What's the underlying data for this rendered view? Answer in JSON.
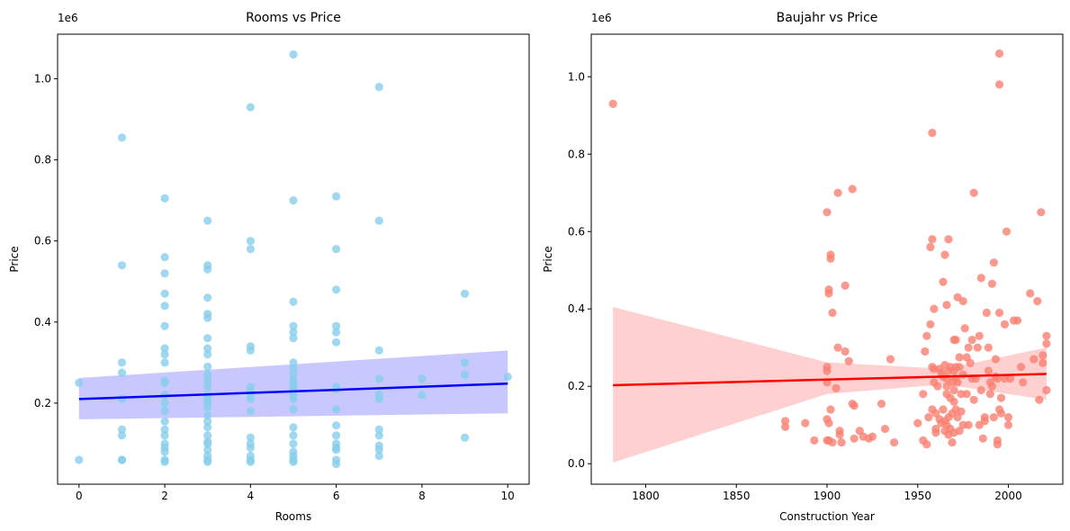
{
  "chart_data": [
    {
      "type": "scatter",
      "title": "Rooms vs Price",
      "xlabel": "Rooms",
      "ylabel": "Price",
      "y_offset_label": "1e6",
      "xlim": [
        -0.5,
        10.5
      ],
      "ylim": [
        0.0,
        1.11
      ],
      "xticks": [
        0,
        2,
        4,
        6,
        8,
        10
      ],
      "xtick_labels": [
        "0",
        "2",
        "4",
        "6",
        "8",
        "10"
      ],
      "yticks": [
        0.2,
        0.4,
        0.6,
        0.8,
        1.0
      ],
      "ytick_labels": [
        "0.2",
        "0.4",
        "0.6",
        "0.8",
        "1.0"
      ],
      "point_color": "#87CEEB",
      "line_color": "#0000FF",
      "band_color": "#C8C8FF",
      "points": [
        [
          0,
          0.25
        ],
        [
          0,
          0.06
        ],
        [
          1,
          0.855
        ],
        [
          1,
          0.54
        ],
        [
          1,
          0.3
        ],
        [
          1,
          0.275
        ],
        [
          1,
          0.21
        ],
        [
          1,
          0.135
        ],
        [
          1,
          0.12
        ],
        [
          1,
          0.06
        ],
        [
          1,
          0.06
        ],
        [
          2,
          0.705
        ],
        [
          2,
          0.56
        ],
        [
          2,
          0.52
        ],
        [
          2,
          0.47
        ],
        [
          2,
          0.44
        ],
        [
          2,
          0.39
        ],
        [
          2,
          0.335
        ],
        [
          2,
          0.32
        ],
        [
          2,
          0.3
        ],
        [
          2,
          0.255
        ],
        [
          2,
          0.25
        ],
        [
          2,
          0.22
        ],
        [
          2,
          0.2
        ],
        [
          2,
          0.18
        ],
        [
          2,
          0.155
        ],
        [
          2,
          0.135
        ],
        [
          2,
          0.12
        ],
        [
          2,
          0.1
        ],
        [
          2,
          0.09
        ],
        [
          2,
          0.08
        ],
        [
          2,
          0.06
        ],
        [
          2,
          0.055
        ],
        [
          3,
          0.65
        ],
        [
          3,
          0.54
        ],
        [
          3,
          0.53
        ],
        [
          3,
          0.46
        ],
        [
          3,
          0.42
        ],
        [
          3,
          0.41
        ],
        [
          3,
          0.36
        ],
        [
          3,
          0.335
        ],
        [
          3,
          0.32
        ],
        [
          3,
          0.29
        ],
        [
          3,
          0.27
        ],
        [
          3,
          0.255
        ],
        [
          3,
          0.24
        ],
        [
          3,
          0.22
        ],
        [
          3,
          0.21
        ],
        [
          3,
          0.2
        ],
        [
          3,
          0.19
        ],
        [
          3,
          0.17
        ],
        [
          3,
          0.155
        ],
        [
          3,
          0.14
        ],
        [
          3,
          0.12
        ],
        [
          3,
          0.105
        ],
        [
          3,
          0.1
        ],
        [
          3,
          0.085
        ],
        [
          3,
          0.07
        ],
        [
          3,
          0.06
        ],
        [
          3,
          0.055
        ],
        [
          4,
          0.93
        ],
        [
          4,
          0.6
        ],
        [
          4,
          0.58
        ],
        [
          4,
          0.34
        ],
        [
          4,
          0.33
        ],
        [
          4,
          0.24
        ],
        [
          4,
          0.23
        ],
        [
          4,
          0.22
        ],
        [
          4,
          0.21
        ],
        [
          4,
          0.18
        ],
        [
          4,
          0.115
        ],
        [
          4,
          0.1
        ],
        [
          4,
          0.09
        ],
        [
          4,
          0.07
        ],
        [
          4,
          0.06
        ],
        [
          4,
          0.055
        ],
        [
          5,
          1.06
        ],
        [
          5,
          0.7
        ],
        [
          5,
          0.45
        ],
        [
          5,
          0.39
        ],
        [
          5,
          0.375
        ],
        [
          5,
          0.36
        ],
        [
          5,
          0.3
        ],
        [
          5,
          0.285
        ],
        [
          5,
          0.27
        ],
        [
          5,
          0.255
        ],
        [
          5,
          0.25
        ],
        [
          5,
          0.24
        ],
        [
          5,
          0.23
        ],
        [
          5,
          0.22
        ],
        [
          5,
          0.21
        ],
        [
          5,
          0.185
        ],
        [
          5,
          0.14
        ],
        [
          5,
          0.12
        ],
        [
          5,
          0.1
        ],
        [
          5,
          0.08
        ],
        [
          5,
          0.07
        ],
        [
          5,
          0.06
        ],
        [
          5,
          0.055
        ],
        [
          6,
          0.71
        ],
        [
          6,
          0.58
        ],
        [
          6,
          0.48
        ],
        [
          6,
          0.39
        ],
        [
          6,
          0.375
        ],
        [
          6,
          0.35
        ],
        [
          6,
          0.24
        ],
        [
          6,
          0.235
        ],
        [
          6,
          0.185
        ],
        [
          6,
          0.145
        ],
        [
          6,
          0.12
        ],
        [
          6,
          0.1
        ],
        [
          6,
          0.09
        ],
        [
          6,
          0.085
        ],
        [
          6,
          0.06
        ],
        [
          6,
          0.05
        ],
        [
          7,
          0.98
        ],
        [
          7,
          0.65
        ],
        [
          7,
          0.33
        ],
        [
          7,
          0.26
        ],
        [
          7,
          0.22
        ],
        [
          7,
          0.21
        ],
        [
          7,
          0.135
        ],
        [
          7,
          0.12
        ],
        [
          7,
          0.095
        ],
        [
          7,
          0.085
        ],
        [
          7,
          0.07
        ],
        [
          8,
          0.26
        ],
        [
          8,
          0.22
        ],
        [
          9,
          0.47
        ],
        [
          9,
          0.3
        ],
        [
          9,
          0.27
        ],
        [
          9,
          0.115
        ],
        [
          10,
          0.265
        ]
      ],
      "regression": {
        "x": [
          0,
          10
        ],
        "y": [
          0.21,
          0.248
        ]
      },
      "band": {
        "x": [
          0,
          10
        ],
        "upper": [
          0.262,
          0.33
        ],
        "lower": [
          0.16,
          0.175
        ]
      }
    },
    {
      "type": "scatter",
      "title": "Baujahr vs Price",
      "xlabel": "Construction Year",
      "ylabel": "Price",
      "y_offset_label": "1e6",
      "xlim": [
        1770,
        2030
      ],
      "ylim": [
        -0.053,
        1.11
      ],
      "xticks": [
        1800,
        1850,
        1900,
        1950,
        2000
      ],
      "xtick_labels": [
        "1800",
        "1850",
        "1900",
        "1950",
        "2000"
      ],
      "yticks": [
        0.0,
        0.2,
        0.4,
        0.6,
        0.8,
        1.0
      ],
      "ytick_labels": [
        "0.0",
        "0.2",
        "0.4",
        "0.6",
        "0.8",
        "1.0"
      ],
      "point_color": "#FA8072",
      "line_color": "#FF0000",
      "band_color": "#FFD0D0",
      "points": [
        [
          1782,
          0.93
        ],
        [
          1877,
          0.11
        ],
        [
          1877,
          0.095
        ],
        [
          1888,
          0.105
        ],
        [
          1893,
          0.06
        ],
        [
          1900,
          0.65
        ],
        [
          1900,
          0.25
        ],
        [
          1900,
          0.24
        ],
        [
          1900,
          0.21
        ],
        [
          1900,
          0.115
        ],
        [
          1900,
          0.06
        ],
        [
          1901,
          0.44
        ],
        [
          1901,
          0.45
        ],
        [
          1901,
          0.105
        ],
        [
          1901,
          0.06
        ],
        [
          1902,
          0.53
        ],
        [
          1902,
          0.54
        ],
        [
          1902,
          0.14
        ],
        [
          1903,
          0.39
        ],
        [
          1903,
          0.055
        ],
        [
          1905,
          0.195
        ],
        [
          1906,
          0.7
        ],
        [
          1906,
          0.3
        ],
        [
          1907,
          0.085
        ],
        [
          1907,
          0.075
        ],
        [
          1908,
          0.055
        ],
        [
          1910,
          0.46
        ],
        [
          1910,
          0.29
        ],
        [
          1912,
          0.265
        ],
        [
          1914,
          0.71
        ],
        [
          1914,
          0.155
        ],
        [
          1915,
          0.15
        ],
        [
          1915,
          0.065
        ],
        [
          1918,
          0.085
        ],
        [
          1920,
          0.07
        ],
        [
          1923,
          0.065
        ],
        [
          1925,
          0.07
        ],
        [
          1930,
          0.155
        ],
        [
          1932,
          0.09
        ],
        [
          1935,
          0.27
        ],
        [
          1937,
          0.055
        ],
        [
          1950,
          0.105
        ],
        [
          1953,
          0.06
        ],
        [
          1953,
          0.18
        ],
        [
          1954,
          0.29
        ],
        [
          1955,
          0.33
        ],
        [
          1955,
          0.05
        ],
        [
          1956,
          0.12
        ],
        [
          1957,
          0.36
        ],
        [
          1957,
          0.56
        ],
        [
          1958,
          0.58
        ],
        [
          1958,
          0.855
        ],
        [
          1958,
          0.25
        ],
        [
          1958,
          0.14
        ],
        [
          1959,
          0.245
        ],
        [
          1959,
          0.4
        ],
        [
          1959,
          0.21
        ],
        [
          1960,
          0.13
        ],
        [
          1960,
          0.09
        ],
        [
          1960,
          0.08
        ],
        [
          1961,
          0.2
        ],
        [
          1962,
          0.245
        ],
        [
          1962,
          0.115
        ],
        [
          1963,
          0.235
        ],
        [
          1963,
          0.105
        ],
        [
          1964,
          0.47
        ],
        [
          1964,
          0.225
        ],
        [
          1964,
          0.14
        ],
        [
          1965,
          0.54
        ],
        [
          1965,
          0.255
        ],
        [
          1965,
          0.11
        ],
        [
          1965,
          0.085
        ],
        [
          1966,
          0.41
        ],
        [
          1966,
          0.22
        ],
        [
          1966,
          0.2
        ],
        [
          1966,
          0.18
        ],
        [
          1966,
          0.1
        ],
        [
          1967,
          0.58
        ],
        [
          1967,
          0.24
        ],
        [
          1967,
          0.12
        ],
        [
          1967,
          0.075
        ],
        [
          1968,
          0.25
        ],
        [
          1968,
          0.17
        ],
        [
          1968,
          0.09
        ],
        [
          1969,
          0.21
        ],
        [
          1969,
          0.13
        ],
        [
          1969,
          0.055
        ],
        [
          1970,
          0.32
        ],
        [
          1970,
          0.24
        ],
        [
          1970,
          0.19
        ],
        [
          1970,
          0.16
        ],
        [
          1970,
          0.08
        ],
        [
          1971,
          0.32
        ],
        [
          1971,
          0.25
        ],
        [
          1971,
          0.22
        ],
        [
          1971,
          0.14
        ],
        [
          1972,
          0.43
        ],
        [
          1972,
          0.21
        ],
        [
          1972,
          0.12
        ],
        [
          1973,
          0.275
        ],
        [
          1973,
          0.25
        ],
        [
          1973,
          0.085
        ],
        [
          1974,
          0.18
        ],
        [
          1974,
          0.135
        ],
        [
          1975,
          0.42
        ],
        [
          1975,
          0.23
        ],
        [
          1975,
          0.1
        ],
        [
          1976,
          0.35
        ],
        [
          1977,
          0.275
        ],
        [
          1977,
          0.18
        ],
        [
          1978,
          0.3
        ],
        [
          1978,
          0.1
        ],
        [
          1979,
          0.26
        ],
        [
          1980,
          0.32
        ],
        [
          1980,
          0.22
        ],
        [
          1981,
          0.7
        ],
        [
          1981,
          0.165
        ],
        [
          1982,
          0.22
        ],
        [
          1983,
          0.3
        ],
        [
          1984,
          0.33
        ],
        [
          1984,
          0.1
        ],
        [
          1985,
          0.48
        ],
        [
          1985,
          0.19
        ],
        [
          1986,
          0.065
        ],
        [
          1987,
          0.12
        ],
        [
          1987,
          0.11
        ],
        [
          1988,
          0.39
        ],
        [
          1989,
          0.3
        ],
        [
          1989,
          0.24
        ],
        [
          1990,
          0.21
        ],
        [
          1990,
          0.18
        ],
        [
          1991,
          0.465
        ],
        [
          1991,
          0.2
        ],
        [
          1992,
          0.52
        ],
        [
          1992,
          0.12
        ],
        [
          1993,
          0.27
        ],
        [
          1993,
          0.225
        ],
        [
          1994,
          0.22
        ],
        [
          1994,
          0.06
        ],
        [
          1994,
          0.05
        ],
        [
          1995,
          0.98
        ],
        [
          1995,
          1.06
        ],
        [
          1995,
          0.39
        ],
        [
          1995,
          0.14
        ],
        [
          1996,
          0.17
        ],
        [
          1996,
          0.13
        ],
        [
          1998,
          0.36
        ],
        [
          1998,
          0.22
        ],
        [
          1999,
          0.6
        ],
        [
          2000,
          0.12
        ],
        [
          2000,
          0.1
        ],
        [
          2001,
          0.22
        ],
        [
          2003,
          0.37
        ],
        [
          2005,
          0.37
        ],
        [
          2007,
          0.25
        ],
        [
          2008,
          0.21
        ],
        [
          2012,
          0.44
        ],
        [
          2014,
          0.27
        ],
        [
          2016,
          0.42
        ],
        [
          2017,
          0.165
        ],
        [
          2018,
          0.65
        ],
        [
          2019,
          0.28
        ],
        [
          2019,
          0.26
        ],
        [
          2021,
          0.33
        ],
        [
          2021,
          0.31
        ],
        [
          2021,
          0.19
        ]
      ],
      "regression": {
        "x": [
          1782,
          2021
        ],
        "y": [
          0.203,
          0.232
        ]
      },
      "band": {
        "x": [
          1782,
          1900,
          1965,
          2021
        ],
        "upper": [
          0.405,
          0.262,
          0.245,
          0.3
        ],
        "lower": [
          0.003,
          0.18,
          0.205,
          0.165
        ]
      }
    }
  ]
}
